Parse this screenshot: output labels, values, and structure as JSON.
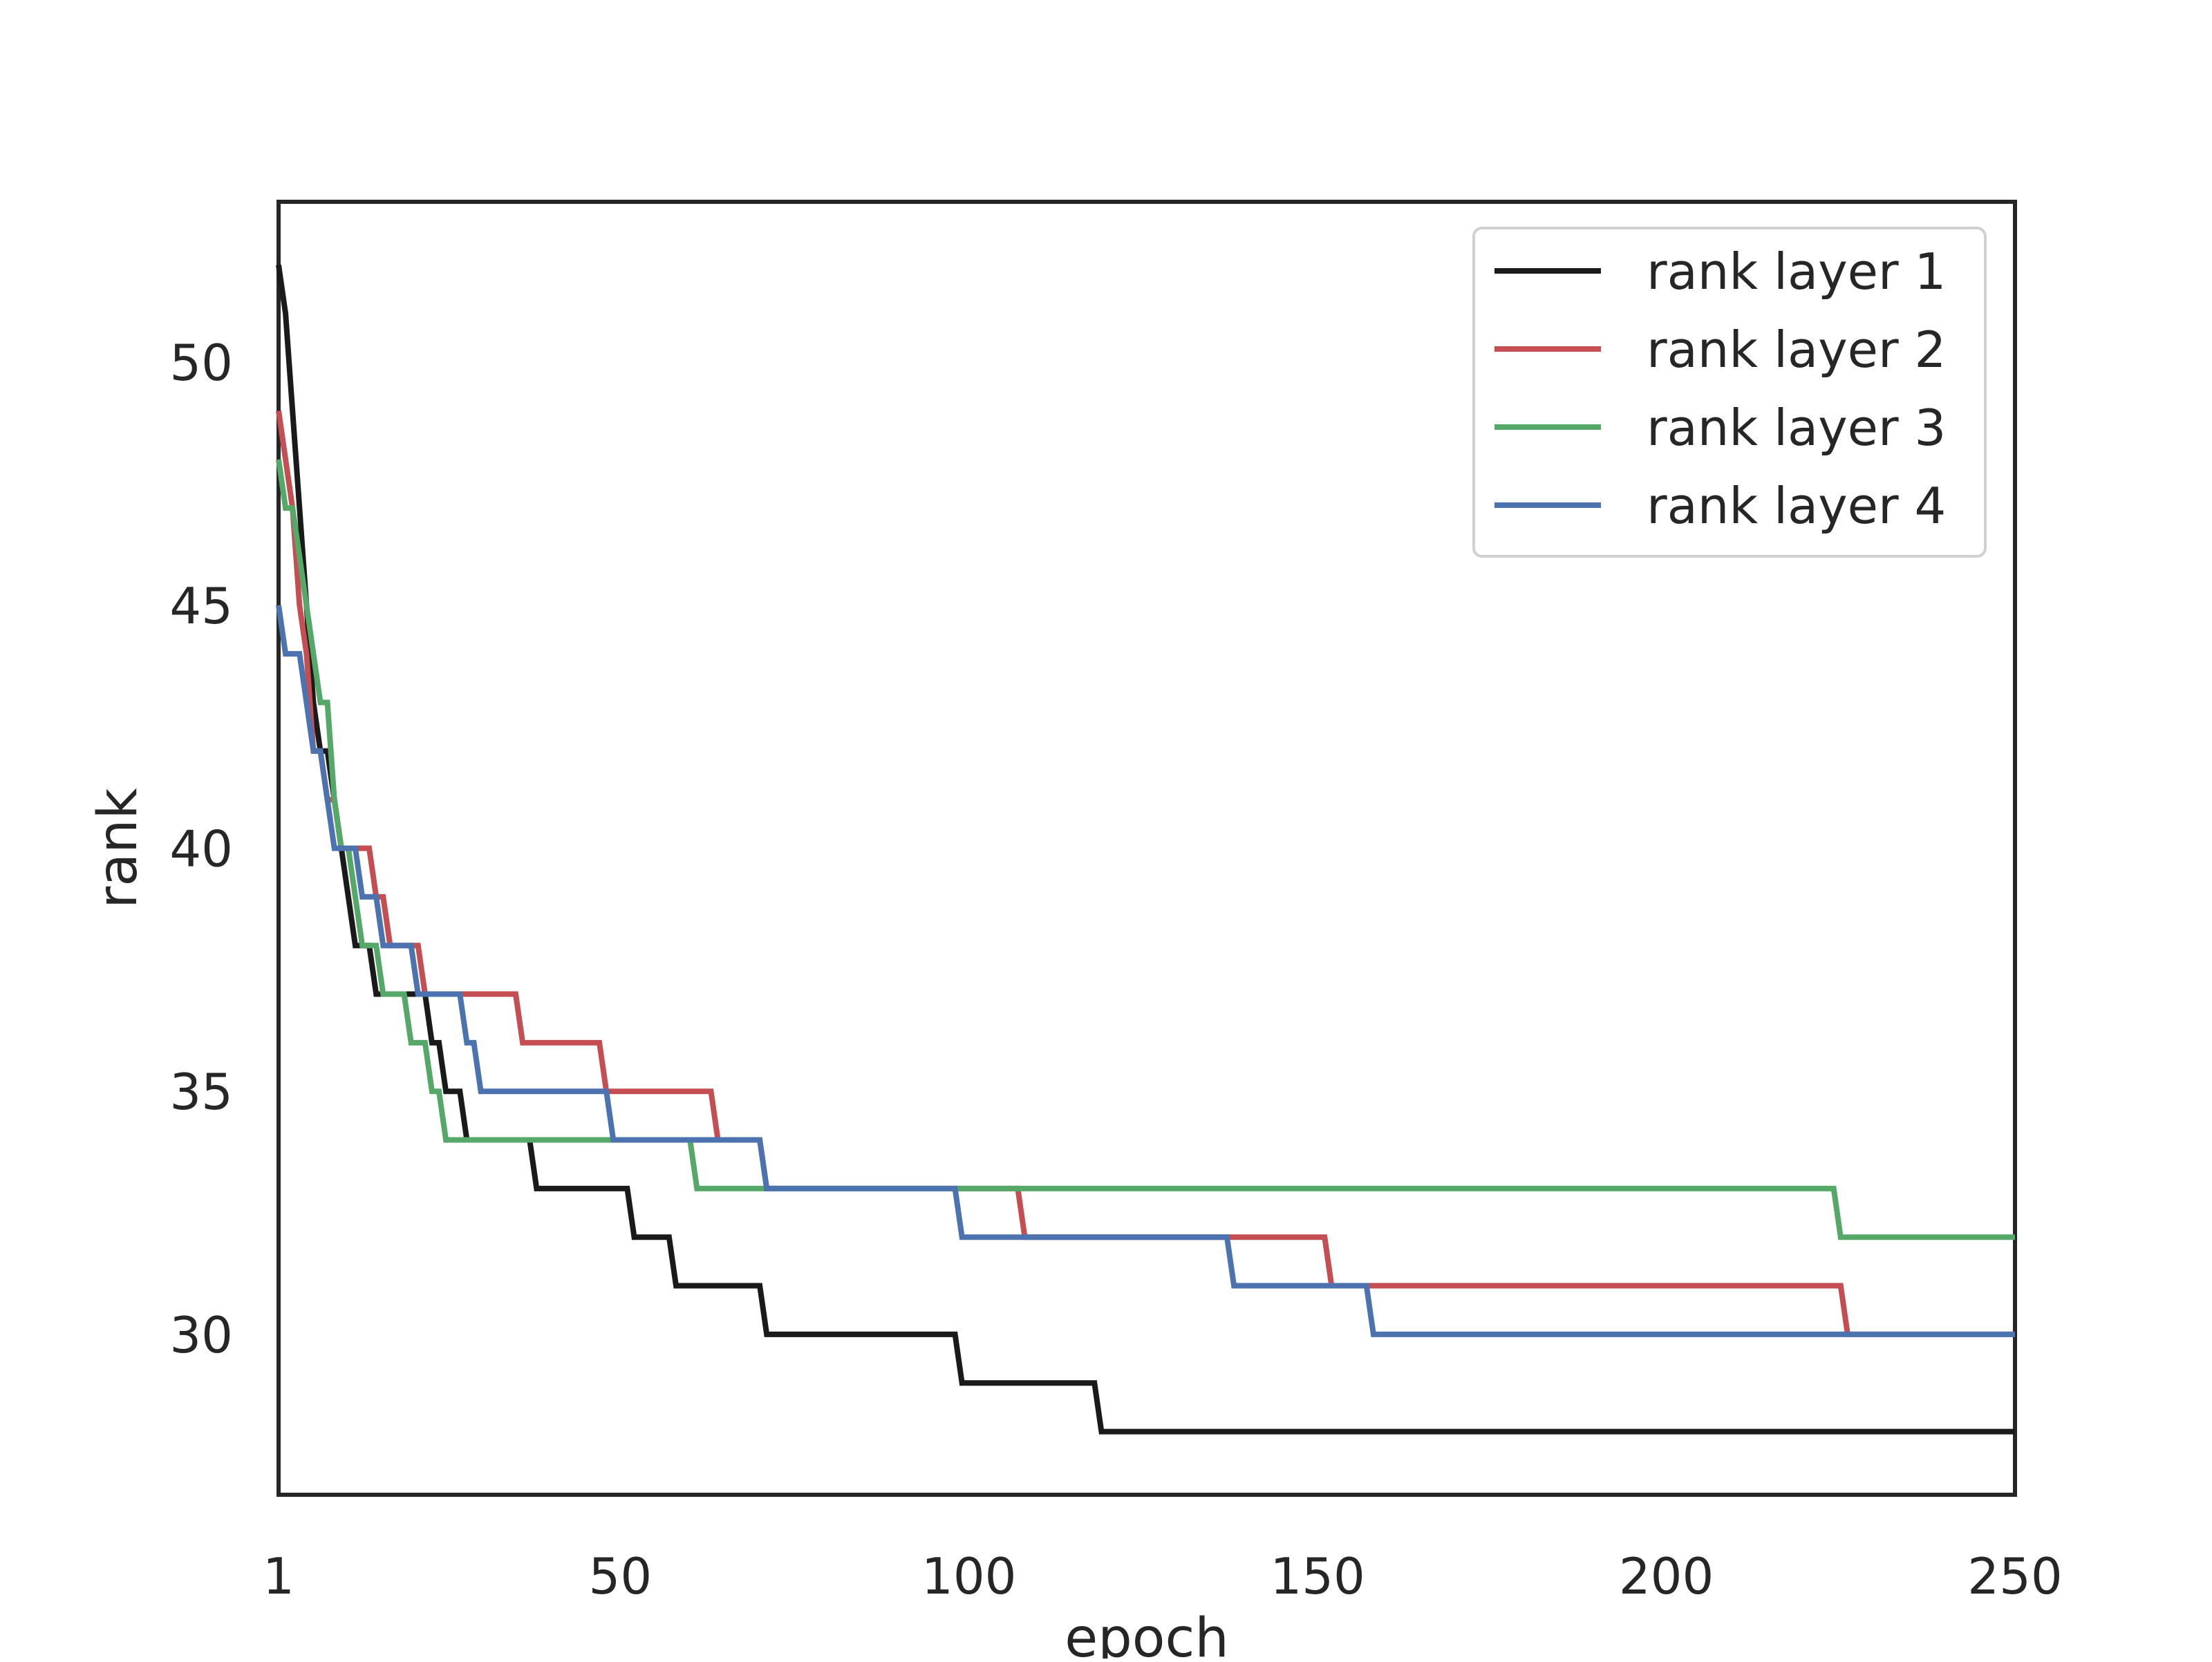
{
  "chart_data": {
    "type": "line",
    "title": "",
    "xlabel": "epoch",
    "ylabel": "rank",
    "xlim": [
      1,
      250
    ],
    "ylim": [
      26.7,
      53.3
    ],
    "xticks": [
      1,
      50,
      100,
      150,
      200,
      250
    ],
    "xtick_labels": [
      "1",
      "50",
      "100",
      "150",
      "200",
      "250"
    ],
    "yticks": [
      30,
      35,
      40,
      45,
      50
    ],
    "ytick_labels": [
      "30",
      "35",
      "40",
      "45",
      "50"
    ],
    "grid": false,
    "legend_position": "top-right",
    "series": [
      {
        "name": "rank layer 1",
        "color": "#1a1a1a",
        "x": [
          1,
          2,
          3,
          4,
          5,
          6,
          7,
          8,
          9,
          10,
          11,
          12,
          13,
          14,
          15,
          16,
          17,
          18,
          19,
          20,
          21,
          22,
          23,
          24,
          25,
          26,
          27,
          28,
          29,
          30,
          37,
          38,
          51,
          52,
          57,
          58,
          70,
          71,
          98,
          99,
          118,
          119,
          250
        ],
        "y": [
          52,
          51,
          49,
          47,
          45,
          43,
          42,
          42,
          41,
          40,
          39,
          38,
          38,
          38,
          37,
          37,
          37,
          37,
          37,
          37,
          37,
          37,
          36,
          36,
          35,
          35,
          35,
          34,
          34,
          34,
          34,
          33,
          33,
          32,
          32,
          31,
          31,
          30,
          30,
          29,
          29,
          28,
          28
        ]
      },
      {
        "name": "rank layer 2",
        "color": "#c44e52",
        "x": [
          1,
          2,
          3,
          4,
          5,
          6,
          7,
          8,
          9,
          10,
          11,
          12,
          13,
          14,
          15,
          16,
          17,
          18,
          19,
          20,
          21,
          22,
          35,
          36,
          47,
          48,
          63,
          64,
          70,
          71,
          107,
          108,
          151,
          152,
          225,
          226,
          250
        ],
        "y": [
          49,
          48,
          47,
          45,
          44,
          42,
          42,
          41,
          41,
          40,
          40,
          40,
          40,
          40,
          39,
          39,
          38,
          38,
          38,
          38,
          38,
          37,
          37,
          36,
          36,
          35,
          35,
          34,
          34,
          33,
          33,
          32,
          32,
          31,
          31,
          30,
          30
        ]
      },
      {
        "name": "rank layer 3",
        "color": "#55a868",
        "x": [
          1,
          2,
          3,
          4,
          5,
          6,
          7,
          8,
          9,
          10,
          11,
          12,
          13,
          14,
          15,
          16,
          17,
          18,
          19,
          20,
          21,
          22,
          23,
          24,
          25,
          26,
          60,
          61,
          224,
          225,
          250
        ],
        "y": [
          48,
          47,
          47,
          46,
          45,
          44,
          43,
          43,
          41,
          40,
          40,
          39,
          38,
          38,
          38,
          37,
          37,
          37,
          37,
          36,
          36,
          36,
          35,
          35,
          34,
          34,
          34,
          33,
          33,
          32,
          32
        ]
      },
      {
        "name": "rank layer 4",
        "color": "#4c72b0",
        "x": [
          1,
          2,
          3,
          4,
          5,
          6,
          7,
          8,
          9,
          10,
          11,
          12,
          13,
          14,
          15,
          16,
          17,
          18,
          19,
          20,
          21,
          27,
          28,
          29,
          30,
          48,
          49,
          70,
          71,
          98,
          99,
          137,
          138,
          157,
          158,
          250
        ],
        "y": [
          45,
          44,
          44,
          44,
          43,
          42,
          42,
          41,
          40,
          40,
          40,
          40,
          39,
          39,
          39,
          38,
          38,
          38,
          38,
          38,
          37,
          37,
          36,
          36,
          35,
          35,
          34,
          34,
          33,
          33,
          32,
          32,
          31,
          31,
          30,
          30
        ]
      }
    ]
  }
}
